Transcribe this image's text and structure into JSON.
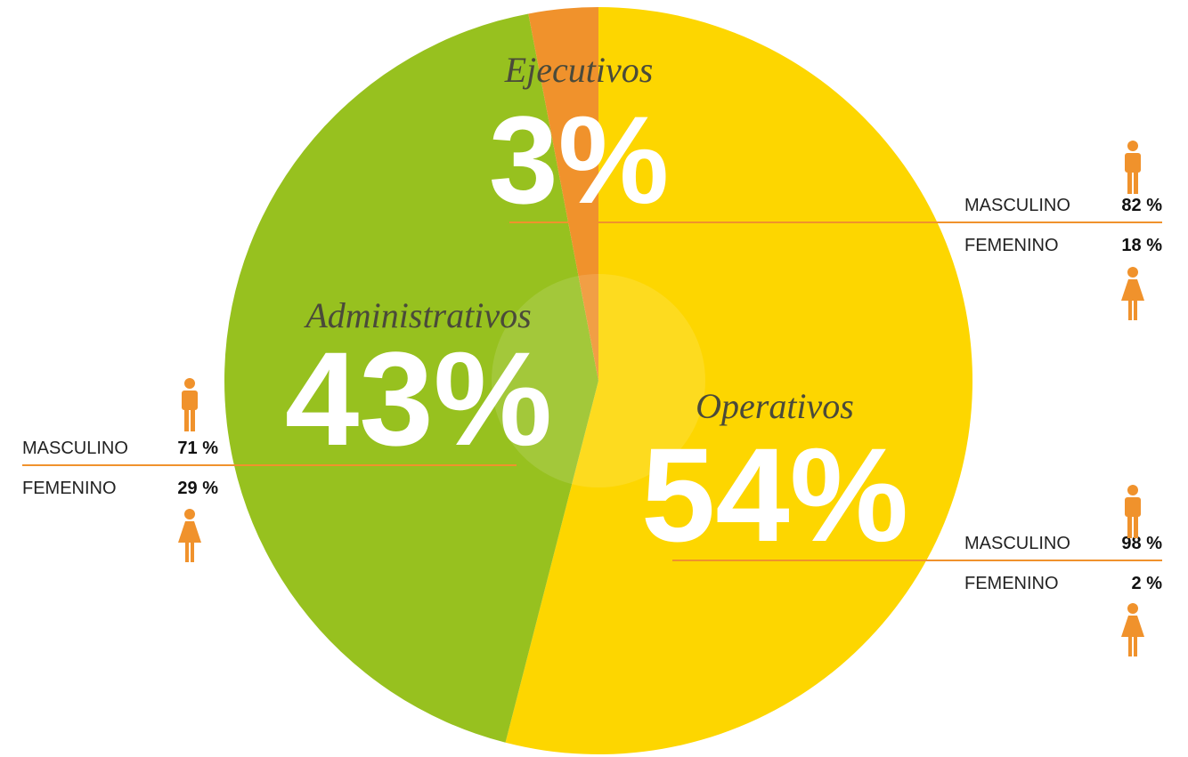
{
  "chart_data": {
    "type": "pie",
    "categories": [
      "Operativos",
      "Administrativos",
      "Ejecutivos"
    ],
    "values": [
      54,
      43,
      3
    ],
    "value_labels": [
      "54%",
      "43%",
      "3%"
    ],
    "colors": [
      "#fdd600",
      "#97c11f",
      "#f0922c"
    ],
    "breakdown": [
      {
        "items": [
          {
            "label": "MASCULINO",
            "value": 98,
            "value_label": "98 %"
          },
          {
            "label": "FEMENINO",
            "value": 2,
            "value_label": "2 %"
          }
        ]
      },
      {
        "items": [
          {
            "label": "MASCULINO",
            "value": 71,
            "value_label": "71 %"
          },
          {
            "label": "FEMENINO",
            "value": 29,
            "value_label": "29 %"
          }
        ]
      },
      {
        "items": [
          {
            "label": "MASCULINO",
            "value": 82,
            "value_label": "82 %"
          },
          {
            "label": "FEMENINO",
            "value": 18,
            "value_label": "18 %"
          }
        ]
      }
    ]
  }
}
